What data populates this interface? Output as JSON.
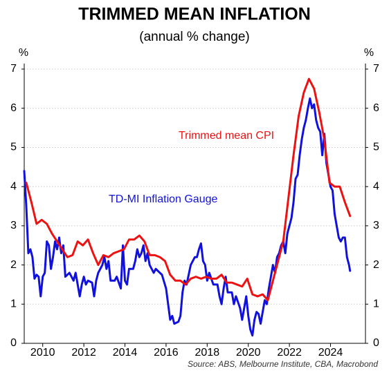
{
  "chart_data": {
    "type": "line",
    "title": "TRIMMED MEAN INFLATION",
    "subtitle": "(annual % change)",
    "y_label": "%",
    "y2_label": "%",
    "source": "Source: ABS, Melbourne Institute, CBA, Macrobond",
    "xlim": [
      2009.1,
      2025.7
    ],
    "xticks": [
      2010,
      2012,
      2014,
      2016,
      2018,
      2020,
      2022,
      2024
    ],
    "ylim": [
      0,
      7
    ],
    "yticks": [
      0,
      1,
      2,
      3,
      4,
      5,
      6,
      7
    ],
    "y2lim": [
      0,
      7
    ],
    "y2ticks": [
      0,
      1,
      2,
      3,
      4,
      5,
      6,
      7
    ],
    "grid": true,
    "series": [
      {
        "name": "Trimmed mean CPI",
        "color": "#ee1111",
        "x": [
          2009.2,
          2009.45,
          2009.7,
          2009.95,
          2010.2,
          2010.45,
          2010.7,
          2010.95,
          2011.2,
          2011.45,
          2011.7,
          2011.95,
          2012.2,
          2012.45,
          2012.7,
          2012.95,
          2013.2,
          2013.45,
          2013.7,
          2013.95,
          2014.2,
          2014.45,
          2014.7,
          2014.95,
          2015.2,
          2015.45,
          2015.7,
          2015.95,
          2016.2,
          2016.45,
          2016.7,
          2016.95,
          2017.2,
          2017.45,
          2017.7,
          2017.95,
          2018.2,
          2018.45,
          2018.7,
          2018.95,
          2019.2,
          2019.45,
          2019.7,
          2019.95,
          2020.2,
          2020.45,
          2020.7,
          2020.95,
          2021.2,
          2021.45,
          2021.7,
          2021.95,
          2022.2,
          2022.45,
          2022.7,
          2022.95,
          2023.2,
          2023.45,
          2023.7,
          2023.95,
          2024.2,
          2024.45,
          2024.7,
          2024.95
        ],
        "values": [
          4.1,
          3.6,
          3.05,
          3.15,
          3.05,
          2.8,
          2.6,
          2.4,
          2.2,
          2.25,
          2.6,
          2.5,
          2.65,
          2.3,
          2.0,
          2.25,
          2.2,
          2.3,
          2.35,
          2.4,
          2.65,
          2.65,
          2.75,
          2.6,
          2.25,
          2.25,
          2.2,
          2.1,
          1.75,
          1.6,
          1.6,
          1.5,
          1.65,
          1.7,
          1.65,
          1.7,
          1.65,
          1.65,
          1.75,
          1.55,
          1.55,
          1.5,
          1.45,
          1.65,
          1.25,
          1.2,
          1.25,
          1.1,
          1.6,
          2.1,
          2.6,
          3.7,
          4.8,
          5.8,
          6.4,
          6.75,
          6.5,
          5.9,
          5.2,
          4.1,
          4.0,
          4.0,
          3.6,
          3.25
        ]
      },
      {
        "name": "TD-MI Inflation Gauge",
        "color": "#1111dd",
        "x": [
          2009.1,
          2009.2,
          2009.3,
          2009.4,
          2009.5,
          2009.6,
          2009.7,
          2009.8,
          2009.9,
          2010.0,
          2010.1,
          2010.2,
          2010.3,
          2010.4,
          2010.5,
          2010.6,
          2010.7,
          2010.8,
          2010.9,
          2011.0,
          2011.1,
          2011.3,
          2011.5,
          2011.6,
          2011.7,
          2011.8,
          2011.9,
          2012.0,
          2012.1,
          2012.2,
          2012.4,
          2012.5,
          2012.6,
          2012.7,
          2012.9,
          2013.0,
          2013.1,
          2013.2,
          2013.3,
          2013.5,
          2013.6,
          2013.8,
          2013.9,
          2014.0,
          2014.1,
          2014.2,
          2014.4,
          2014.5,
          2014.6,
          2014.7,
          2014.8,
          2014.9,
          2015.0,
          2015.1,
          2015.2,
          2015.4,
          2015.5,
          2015.7,
          2015.8,
          2016.0,
          2016.1,
          2016.2,
          2016.3,
          2016.4,
          2016.6,
          2016.7,
          2016.8,
          2016.9,
          2017.0,
          2017.2,
          2017.4,
          2017.5,
          2017.6,
          2017.7,
          2017.8,
          2017.9,
          2018.0,
          2018.1,
          2018.3,
          2018.5,
          2018.6,
          2018.7,
          2018.8,
          2018.9,
          2019.0,
          2019.2,
          2019.3,
          2019.4,
          2019.6,
          2019.7,
          2019.8,
          2019.9,
          2020.0,
          2020.1,
          2020.2,
          2020.3,
          2020.4,
          2020.5,
          2020.6,
          2020.7,
          2020.8,
          2020.9,
          2021.0,
          2021.1,
          2021.2,
          2021.3,
          2021.4,
          2021.5,
          2021.6,
          2021.7,
          2021.8,
          2021.9,
          2022.0,
          2022.1,
          2022.2,
          2022.3,
          2022.4,
          2022.5,
          2022.6,
          2022.7,
          2022.8,
          2022.9,
          2023.0,
          2023.1,
          2023.2,
          2023.3,
          2023.4,
          2023.5,
          2023.6,
          2023.7,
          2023.8,
          2023.9,
          2024.0,
          2024.1,
          2024.2,
          2024.3,
          2024.4,
          2024.5,
          2024.6,
          2024.7,
          2024.8,
          2024.9,
          2024.95
        ],
        "values": [
          4.4,
          3.5,
          2.3,
          2.4,
          2.2,
          1.65,
          1.75,
          1.7,
          1.2,
          1.7,
          1.8,
          2.6,
          2.5,
          1.9,
          2.2,
          2.6,
          2.4,
          2.7,
          2.3,
          2.5,
          1.7,
          1.8,
          1.6,
          1.8,
          1.5,
          1.2,
          1.5,
          1.7,
          1.5,
          1.6,
          1.55,
          1.2,
          1.6,
          1.8,
          2.0,
          2.2,
          1.9,
          2.1,
          1.6,
          1.6,
          1.7,
          1.4,
          2.5,
          1.6,
          1.5,
          1.9,
          1.9,
          2.1,
          2.4,
          2.2,
          2.3,
          2.5,
          2.1,
          2.3,
          2.0,
          1.8,
          1.9,
          1.8,
          1.75,
          1.4,
          1.0,
          0.6,
          0.7,
          0.5,
          0.55,
          0.7,
          1.3,
          1.6,
          1.5,
          2.0,
          2.2,
          2.2,
          2.4,
          2.55,
          2.1,
          2.0,
          1.6,
          1.8,
          1.5,
          1.5,
          1.2,
          1.0,
          1.4,
          1.7,
          1.3,
          1.3,
          1.0,
          1.2,
          0.9,
          0.6,
          0.9,
          1.2,
          0.7,
          0.35,
          0.2,
          0.6,
          0.8,
          0.75,
          0.5,
          0.8,
          1.1,
          1.0,
          1.4,
          1.7,
          2.0,
          1.8,
          2.2,
          2.3,
          2.5,
          2.6,
          2.3,
          2.8,
          3.0,
          3.2,
          3.6,
          4.2,
          4.3,
          4.8,
          5.2,
          5.5,
          5.7,
          6.0,
          6.25,
          6.0,
          6.1,
          5.7,
          5.5,
          5.4,
          4.8,
          5.35,
          4.6,
          4.3,
          4.0,
          3.9,
          3.3,
          3.0,
          2.7,
          2.6,
          2.7,
          2.7,
          2.2,
          2.0,
          1.85
        ]
      }
    ]
  }
}
